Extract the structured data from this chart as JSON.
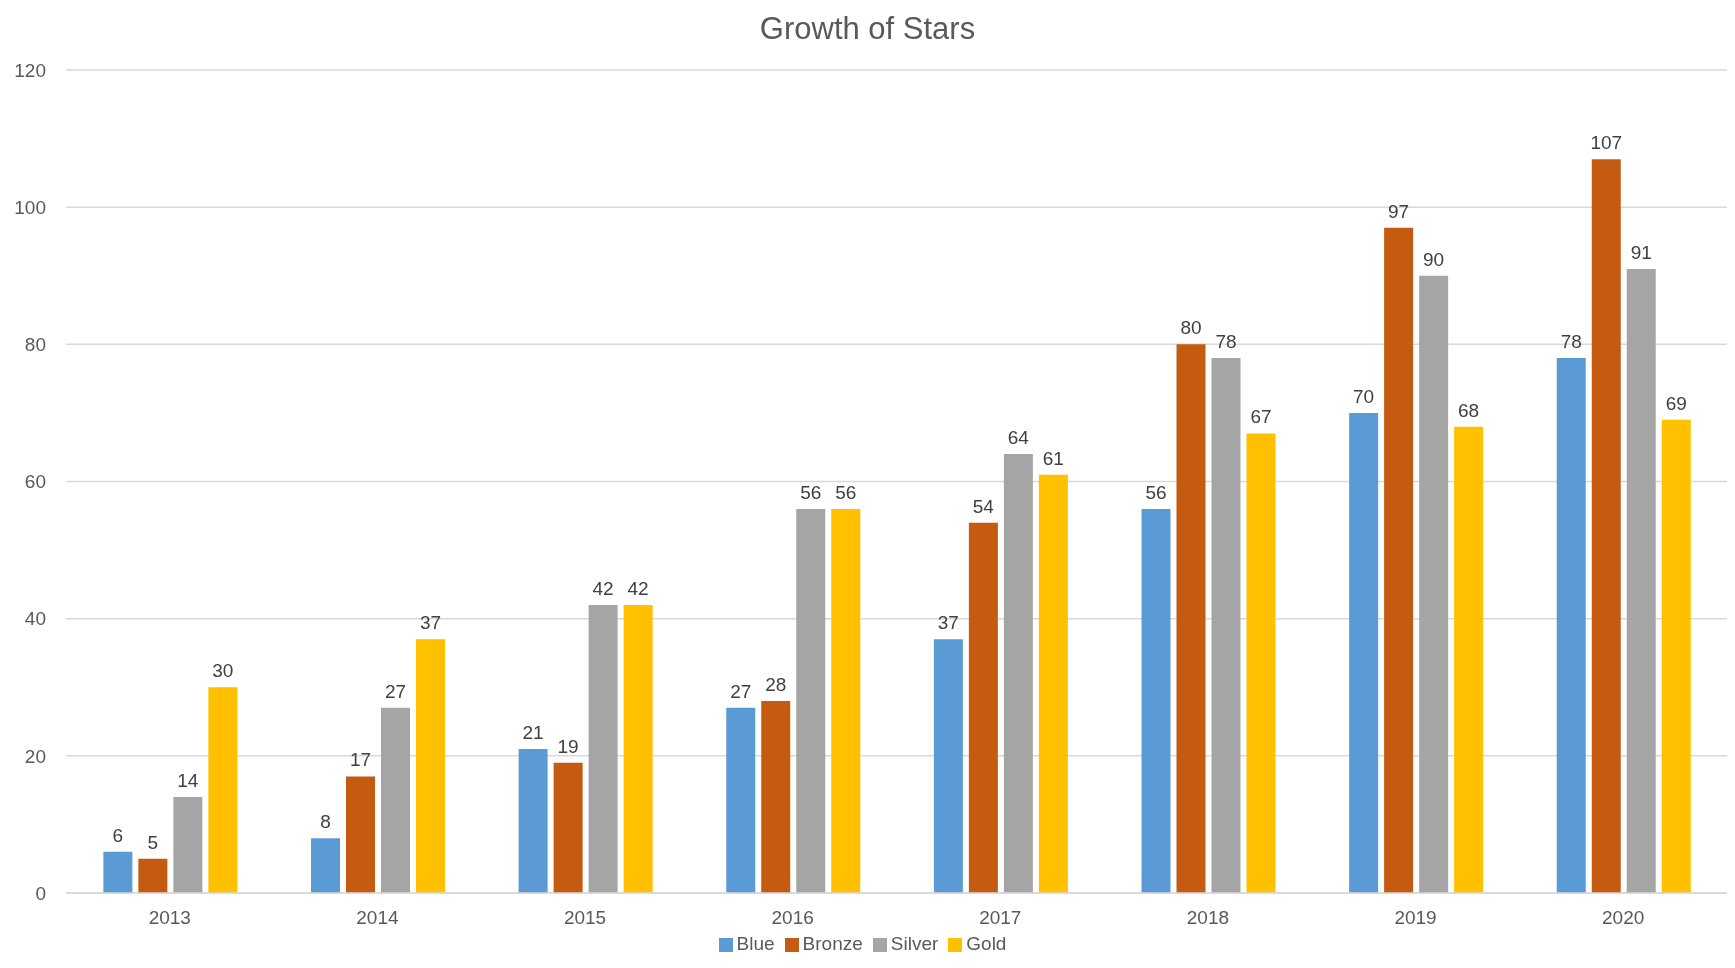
{
  "chart_data": {
    "type": "bar",
    "title": "Growth of Stars",
    "categories": [
      "2013",
      "2014",
      "2015",
      "2016",
      "2017",
      "2018",
      "2019",
      "2020"
    ],
    "series": [
      {
        "name": "Blue",
        "color": "#5b9bd5",
        "values": [
          6,
          8,
          21,
          27,
          37,
          56,
          70,
          78
        ]
      },
      {
        "name": "Bronze",
        "color": "#c55a11",
        "values": [
          5,
          17,
          19,
          28,
          54,
          80,
          97,
          107
        ]
      },
      {
        "name": "Silver",
        "color": "#a5a5a5",
        "values": [
          14,
          27,
          42,
          56,
          64,
          78,
          90,
          91
        ]
      },
      {
        "name": "Gold",
        "color": "#ffc000",
        "values": [
          30,
          37,
          42,
          56,
          61,
          67,
          68,
          69
        ]
      }
    ],
    "ylim": [
      0,
      120
    ],
    "yticks": [
      0,
      20,
      40,
      60,
      80,
      100,
      120
    ],
    "grid": "y",
    "legend": "bottom",
    "data_labels": true
  }
}
